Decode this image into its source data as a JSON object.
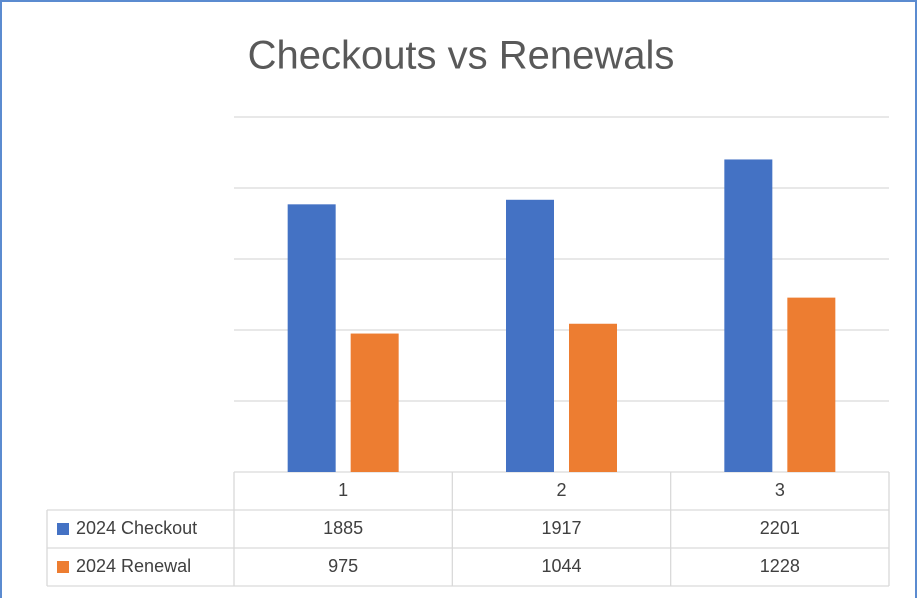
{
  "chart_data": {
    "type": "bar",
    "title": "Checkouts vs Renewals",
    "categories": [
      "1",
      "2",
      "3"
    ],
    "series": [
      {
        "name": "2024 Checkout",
        "color": "#4472c4",
        "values": [
          1885,
          1917,
          2201
        ]
      },
      {
        "name": "2024 Renewal",
        "color": "#ed7d31",
        "values": [
          975,
          1044,
          1228
        ]
      }
    ],
    "ylim": [
      0,
      2500
    ],
    "yticks": [
      0,
      500,
      1000,
      1500,
      2000,
      2500
    ],
    "grid": true
  }
}
